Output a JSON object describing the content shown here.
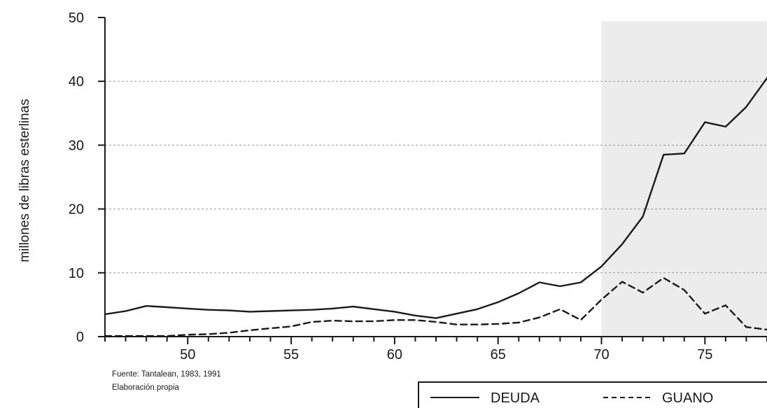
{
  "chart_data": {
    "type": "line",
    "title": "",
    "xlabel": "",
    "ylabel": "millones de libras esterlinas",
    "xlim": [
      46,
      78
    ],
    "ylim": [
      0,
      50
    ],
    "xticks": [
      50,
      55,
      60,
      65,
      70,
      75
    ],
    "yticks": [
      0,
      10,
      20,
      30,
      40,
      50
    ],
    "grid": "horizontal dashed",
    "shaded_region": {
      "x_from": 70,
      "x_to": 78,
      "color": "#ececec"
    },
    "legend_position": "bottom-right",
    "series": [
      {
        "name": "DEUDA",
        "style": "solid",
        "color": "#1a1a1a",
        "x": [
          46,
          47,
          48,
          49,
          50,
          51,
          52,
          53,
          54,
          55,
          56,
          57,
          58,
          59,
          60,
          61,
          62,
          63,
          64,
          65,
          66,
          67,
          68,
          69,
          70,
          71,
          72,
          73,
          74,
          75,
          76,
          77,
          78
        ],
        "y": [
          3.5,
          4.0,
          4.8,
          4.6,
          4.4,
          4.2,
          4.1,
          3.9,
          4.0,
          4.1,
          4.2,
          4.4,
          4.7,
          4.3,
          3.9,
          3.3,
          2.9,
          3.6,
          4.3,
          5.4,
          6.8,
          8.5,
          7.9,
          8.5,
          11.0,
          14.5,
          18.8,
          28.5,
          28.7,
          33.6,
          32.9,
          36.0,
          40.5
        ]
      },
      {
        "name": "GUANO",
        "style": "dashed",
        "color": "#1a1a1a",
        "x": [
          46,
          47,
          48,
          49,
          50,
          51,
          52,
          53,
          54,
          55,
          56,
          57,
          58,
          59,
          60,
          61,
          62,
          63,
          64,
          65,
          66,
          67,
          68,
          69,
          70,
          71,
          72,
          73,
          74,
          75,
          76,
          77,
          78
        ],
        "y": [
          0.1,
          0.1,
          0.1,
          0.1,
          0.3,
          0.4,
          0.6,
          1.0,
          1.3,
          1.6,
          2.3,
          2.5,
          2.4,
          2.4,
          2.6,
          2.6,
          2.3,
          1.9,
          1.9,
          2.0,
          2.2,
          3.0,
          4.3,
          2.6,
          5.8,
          8.6,
          6.9,
          9.2,
          7.3,
          3.6,
          4.9,
          1.5,
          1.1
        ]
      }
    ],
    "annotations": [
      "Fuente: Tantalean, 1983, 1991",
      "Elaboración propia"
    ]
  }
}
